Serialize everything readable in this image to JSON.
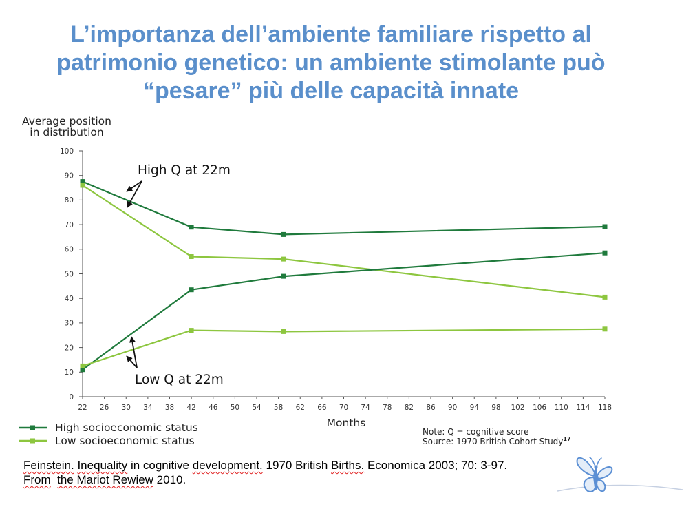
{
  "slide": {
    "title_lines": [
      "L’importanza dell’ambiente familiare rispetto al",
      "patrimonio genetico: un ambiente stimolante può",
      "“pesare” più delle capacità innate"
    ],
    "title_color": "#5a8fcb"
  },
  "chart_data": {
    "type": "line",
    "ylabel": [
      "Average position",
      "in distribution"
    ],
    "xlabel": "Months",
    "xlim": [
      22,
      118
    ],
    "ylim": [
      0,
      100
    ],
    "xticks": [
      22,
      26,
      30,
      34,
      38,
      42,
      46,
      50,
      54,
      58,
      62,
      66,
      70,
      74,
      78,
      82,
      86,
      90,
      94,
      98,
      102,
      106,
      110,
      114,
      118
    ],
    "yticks": [
      0,
      10,
      20,
      30,
      40,
      50,
      60,
      70,
      80,
      90,
      100
    ],
    "grid": false,
    "legend_placement": "bottom-left",
    "legend": [
      {
        "label": "High socioeconomic status",
        "color": "#1f7a3c"
      },
      {
        "label": "Low socioeconomic status",
        "color": "#8dc63f"
      }
    ],
    "annotations": [
      {
        "text": "High Q at 22m"
      },
      {
        "text": "Low Q at 22m"
      }
    ],
    "x": [
      22,
      42,
      59,
      118
    ],
    "series": [
      {
        "legend_index": 0,
        "annotation_index": 0,
        "values": [
          87.5,
          69,
          66,
          69.2
        ]
      },
      {
        "legend_index": 1,
        "annotation_index": 0,
        "values": [
          86,
          57,
          56,
          40.5
        ]
      },
      {
        "legend_index": 0,
        "annotation_index": 1,
        "values": [
          11,
          43.5,
          49,
          58.5
        ]
      },
      {
        "legend_index": 1,
        "annotation_index": 1,
        "values": [
          12.5,
          27,
          26.5,
          27.5
        ]
      }
    ],
    "note": "Note: Q = cognitive score",
    "source": "Source: 1970 British Cohort Study",
    "source_ref": "17"
  },
  "citation": {
    "line1": [
      {
        "text": "Feinstein.",
        "flagged": true
      },
      {
        "text": " "
      },
      {
        "text": "Inequality",
        "flagged": true
      },
      {
        "text": " in cognitive "
      },
      {
        "text": "development.",
        "flagged": true
      },
      {
        "text": " 1970 British "
      },
      {
        "text": "Births.",
        "flagged": true
      },
      {
        "text": " Economica 2003; 70: 3-97."
      }
    ],
    "line2": [
      {
        "text": "From",
        "flagged": true
      },
      {
        "text": "  "
      },
      {
        "text": "the Mariot Rewiew",
        "flagged": true
      },
      {
        "text": " 2010."
      }
    ]
  },
  "logo": {
    "icon": "butterfly-logo-icon",
    "stroke": "#5b8fd4",
    "fill": "#e4edf8",
    "swoosh": "#c6d0e2"
  }
}
